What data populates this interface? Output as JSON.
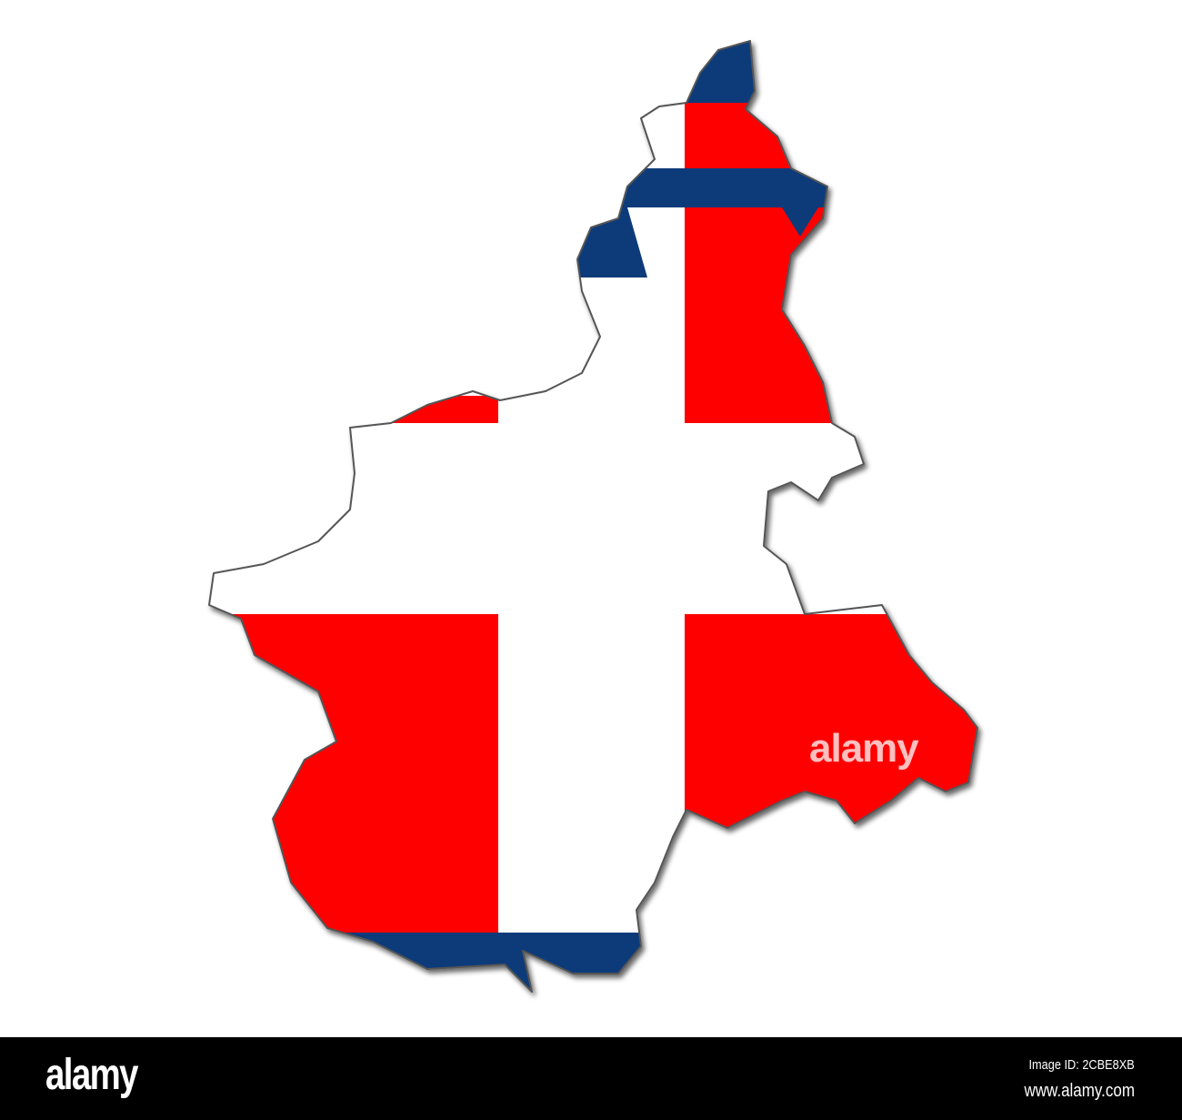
{
  "map": {
    "region_shape": "Piedmont outline",
    "flag": {
      "colors": {
        "field": "#ff0000",
        "cross": "#ffffff",
        "border": "#0d3a7a"
      }
    },
    "watermark": "alamy"
  },
  "footer": {
    "logo": "alamy",
    "image_id": "Image ID: 2CBE8XB",
    "website": "www.alamy.com"
  }
}
